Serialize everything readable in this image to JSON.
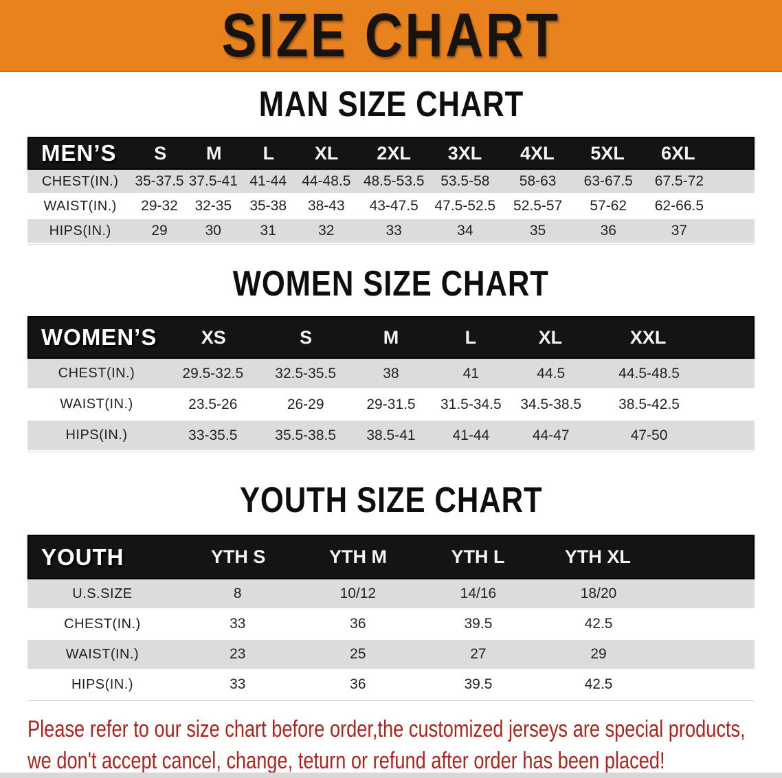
{
  "banner": {
    "title": "SIZE CHART"
  },
  "colors": {
    "banner_bg": "#E8821C",
    "header_band": "#141414",
    "row_stripe": "#DCDCDC",
    "note_red": "#AD241E",
    "bottom_strip": "#D8D8D8"
  },
  "sections": {
    "men": {
      "title": "MAN SIZE CHART",
      "table": {
        "corner_label": "MEN’S",
        "size_headers": [
          "S",
          "M",
          "L",
          "XL",
          "2XL",
          "3XL",
          "4XL",
          "5XL",
          "6XL"
        ],
        "rows": [
          {
            "label": "CHEST(IN.)",
            "values": [
              "35-37.5",
              "37.5-41",
              "41-44",
              "44-48.5",
              "48.5-53.5",
              "53.5-58",
              "58-63",
              "63-67.5",
              "67.5-72"
            ]
          },
          {
            "label": "WAIST(IN.)",
            "values": [
              "29-32",
              "32-35",
              "35-38",
              "38-43",
              "43-47.5",
              "47.5-52.5",
              "52.5-57",
              "57-62",
              "62-66.5"
            ]
          },
          {
            "label": "HIPS(IN.)",
            "values": [
              "29",
              "30",
              "31",
              "32",
              "33",
              "34",
              "35",
              "36",
              "37"
            ]
          }
        ]
      }
    },
    "women": {
      "title": "WOMEN SIZE CHART",
      "table": {
        "corner_label": "WOMEN’S",
        "size_headers": [
          "XS",
          "S",
          "M",
          "L",
          "XL",
          "XXL"
        ],
        "rows": [
          {
            "label": "CHEST(IN.)",
            "values": [
              "29.5-32.5",
              "32.5-35.5",
              "38",
              "41",
              "44.5",
              "44.5-48.5"
            ]
          },
          {
            "label": "WAIST(IN.)",
            "values": [
              "23.5-26",
              "26-29",
              "29-31.5",
              "31.5-34.5",
              "34.5-38.5",
              "38.5-42.5"
            ]
          },
          {
            "label": "HIPS(IN.)",
            "values": [
              "33-35.5",
              "35.5-38.5",
              "38.5-41",
              "41-44",
              "44-47",
              "47-50"
            ]
          }
        ]
      }
    },
    "youth": {
      "title": "YOUTH SIZE CHART",
      "table": {
        "corner_label": "YOUTH",
        "size_headers": [
          "YTH S",
          "YTH M",
          "YTH L",
          "YTH XL"
        ],
        "rows": [
          {
            "label": "U.S.SIZE",
            "values": [
              "8",
              "10/12",
              "14/16",
              "18/20"
            ]
          },
          {
            "label": "CHEST(IN.)",
            "values": [
              "33",
              "36",
              "39.5",
              "42.5"
            ]
          },
          {
            "label": "WAIST(IN.)",
            "values": [
              "23",
              "25",
              "27",
              "29"
            ]
          },
          {
            "label": "HIPS(IN.)",
            "values": [
              "33",
              "36",
              "39.5",
              "42.5"
            ]
          }
        ]
      }
    }
  },
  "footnote": {
    "line1": "Please refer to our size chart before order,the customized jerseys are special products,",
    "line2": "we don't accept cancel, change, teturn or refund after order has been placed!"
  }
}
